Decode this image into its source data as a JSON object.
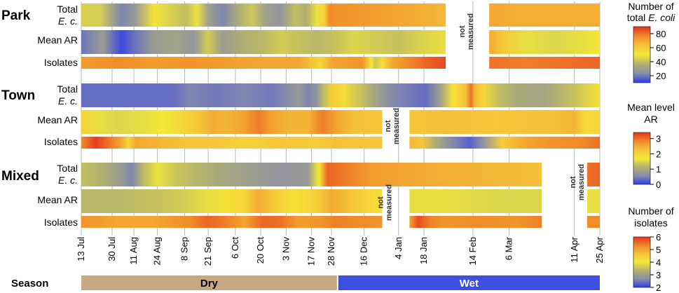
{
  "chart_data": {
    "type": "heatmap",
    "dates": [
      "13 Jul",
      "30 Jul",
      "11 Aug",
      "24 Aug",
      "8 Sep",
      "21 Sep",
      "6 Oct",
      "20 Oct",
      "3 Nov",
      "17 Nov",
      "28 Nov",
      "16 Dec",
      "4 Jan",
      "18 Jan",
      "14 Feb",
      "6 Mar",
      "11 Apr",
      "25 Apr"
    ],
    "date_days": [
      0,
      17,
      29,
      42,
      57,
      70,
      85,
      99,
      113,
      127,
      138,
      156,
      175,
      189,
      216,
      236,
      272,
      286
    ],
    "not_measured_label": [
      "not",
      "measured"
    ],
    "groups": [
      {
        "name": "Park",
        "total_label": [
          "Total",
          "E. c."
        ],
        "mean_ar_label": "Mean AR",
        "isolates_label": "Isolates",
        "total_range": [
          0,
          201
        ],
        "total_range_2": [
          225,
          286
        ],
        "not_measured_day": 216,
        "total_values": [
          [
            0,
            44
          ],
          [
            10,
            44
          ],
          [
            22,
            22
          ],
          [
            30,
            28
          ],
          [
            40,
            52
          ],
          [
            50,
            44
          ],
          [
            58,
            40
          ],
          [
            64,
            48
          ],
          [
            70,
            30
          ],
          [
            78,
            22
          ],
          [
            86,
            34
          ],
          [
            94,
            42
          ],
          [
            102,
            30
          ],
          [
            110,
            26
          ],
          [
            118,
            40
          ],
          [
            124,
            36
          ],
          [
            130,
            48
          ],
          [
            134,
            58
          ],
          [
            137,
            76
          ],
          [
            143,
            74
          ],
          [
            160,
            72
          ],
          [
            175,
            70
          ],
          [
            190,
            68
          ],
          [
            201,
            66
          ],
          [
            225,
            70
          ],
          [
            240,
            68
          ],
          [
            260,
            68
          ],
          [
            286,
            68
          ]
        ],
        "total_values_2": [
          [
            225,
            70
          ],
          [
            240,
            68
          ],
          [
            260,
            68
          ],
          [
            286,
            68
          ]
        ],
        "mean_ar_range": [
          0,
          201
        ],
        "mean_ar_range_2": [
          225,
          286
        ],
        "mean_ar_values": [
          [
            0,
            0.4
          ],
          [
            12,
            0.8
          ],
          [
            22,
            0.1
          ],
          [
            30,
            0.4
          ],
          [
            40,
            0.8
          ],
          [
            52,
            0.9
          ],
          [
            62,
            0.7
          ],
          [
            70,
            1.4
          ],
          [
            78,
            0.8
          ],
          [
            90,
            1.1
          ],
          [
            100,
            1.2
          ],
          [
            110,
            1.4
          ],
          [
            120,
            1.3
          ],
          [
            130,
            1.2
          ],
          [
            140,
            1.3
          ],
          [
            150,
            1.5
          ],
          [
            162,
            1.4
          ],
          [
            175,
            1.3
          ],
          [
            190,
            1.5
          ],
          [
            201,
            1.6
          ]
        ],
        "mean_ar_values_2": [
          [
            225,
            2.5
          ],
          [
            232,
            2.2
          ],
          [
            245,
            1.6
          ],
          [
            262,
            1.5
          ],
          [
            276,
            1.6
          ],
          [
            286,
            1.7
          ]
        ],
        "isolates_range": [
          0,
          201
        ],
        "isolates_range_2": [
          225,
          286
        ],
        "isolates_values": [
          [
            0,
            5.1
          ],
          [
            20,
            5.3
          ],
          [
            40,
            5.1
          ],
          [
            60,
            5.2
          ],
          [
            80,
            5.1
          ],
          [
            100,
            5.0
          ],
          [
            120,
            5.0
          ],
          [
            132,
            4.3
          ],
          [
            138,
            5.0
          ],
          [
            155,
            5.2
          ],
          [
            160,
            4.0
          ],
          [
            162,
            3.6
          ],
          [
            166,
            4.2
          ],
          [
            172,
            5.0
          ],
          [
            180,
            5.3
          ],
          [
            190,
            5.6
          ],
          [
            201,
            5.8
          ]
        ],
        "isolates_values_2": [
          [
            225,
            5.5
          ],
          [
            245,
            5.4
          ],
          [
            265,
            5.5
          ],
          [
            286,
            5.6
          ]
        ]
      },
      {
        "name": "Town",
        "total_label": [
          "Total",
          "E. c."
        ],
        "mean_ar_label": "Mean AR",
        "isolates_label": "Isolates",
        "not_measured_day": 175,
        "total_values": [
          [
            0,
            18
          ],
          [
            50,
            18
          ],
          [
            60,
            22
          ],
          [
            75,
            20
          ],
          [
            90,
            22
          ],
          [
            105,
            20
          ],
          [
            115,
            24
          ],
          [
            120,
            28
          ],
          [
            125,
            22
          ],
          [
            130,
            26
          ],
          [
            134,
            40
          ],
          [
            138,
            60
          ],
          [
            145,
            55
          ],
          [
            155,
            40
          ],
          [
            165,
            28
          ],
          [
            175,
            22
          ],
          [
            190,
            18
          ],
          [
            198,
            30
          ],
          [
            205,
            52
          ],
          [
            212,
            64
          ],
          [
            215,
            80
          ],
          [
            217,
            66
          ],
          [
            222,
            56
          ],
          [
            230,
            40
          ],
          [
            240,
            34
          ],
          [
            255,
            32
          ],
          [
            270,
            40
          ],
          [
            286,
            52
          ]
        ],
        "mean_ar_range": [
          0,
          166
        ],
        "mean_ar_range_2": [
          181,
          286
        ],
        "mean_ar_values": [
          [
            0,
            2.0
          ],
          [
            10,
            1.6
          ],
          [
            20,
            1.5
          ],
          [
            35,
            1.6
          ],
          [
            45,
            1.7
          ],
          [
            57,
            2.0
          ],
          [
            65,
            2.2
          ],
          [
            72,
            2.5
          ],
          [
            80,
            2.4
          ],
          [
            90,
            2.6
          ],
          [
            98,
            2.9
          ],
          [
            105,
            2.6
          ],
          [
            115,
            2.4
          ],
          [
            125,
            2.4
          ],
          [
            133,
            2.9
          ],
          [
            140,
            2.6
          ],
          [
            150,
            2.3
          ],
          [
            166,
            2.2
          ]
        ],
        "mean_ar_values_2": [
          [
            181,
            2.2
          ],
          [
            200,
            2.3
          ],
          [
            230,
            2.2
          ],
          [
            260,
            2.3
          ],
          [
            272,
            2.4
          ],
          [
            278,
            1.9
          ],
          [
            286,
            2.0
          ]
        ],
        "isolates_range": [
          0,
          166
        ],
        "isolates_range_2": [
          181,
          286
        ],
        "isolates_values": [
          [
            0,
            5.3
          ],
          [
            8,
            5.9
          ],
          [
            15,
            5.5
          ],
          [
            22,
            5.0
          ],
          [
            26,
            4.3
          ],
          [
            30,
            5.0
          ],
          [
            45,
            4.8
          ],
          [
            60,
            4.6
          ],
          [
            75,
            4.6
          ],
          [
            90,
            4.4
          ],
          [
            110,
            4.6
          ],
          [
            130,
            4.5
          ],
          [
            140,
            4.7
          ],
          [
            150,
            4.6
          ],
          [
            166,
            4.6
          ]
        ],
        "isolates_values_2": [
          [
            181,
            4.8
          ],
          [
            188,
            4.6
          ],
          [
            196,
            3.2
          ],
          [
            206,
            2.6
          ],
          [
            214,
            2.3
          ],
          [
            222,
            2.8
          ],
          [
            232,
            4.5
          ],
          [
            245,
            5.0
          ],
          [
            260,
            5.2
          ],
          [
            275,
            5.3
          ],
          [
            286,
            5.5
          ]
        ]
      },
      {
        "name": "Mixed",
        "total_label": [
          "Total",
          "E. c."
        ],
        "mean_ar_label": "Mean AR",
        "isolates_label": "Isolates",
        "total_range": [
          0,
          254
        ],
        "total_range_2": [
          279,
          286
        ],
        "not_measured_day": 270,
        "total_values": [
          [
            0,
            40
          ],
          [
            12,
            36
          ],
          [
            22,
            28
          ],
          [
            28,
            22
          ],
          [
            35,
            40
          ],
          [
            42,
            48
          ],
          [
            52,
            42
          ],
          [
            62,
            38
          ],
          [
            75,
            34
          ],
          [
            90,
            30
          ],
          [
            110,
            26
          ],
          [
            125,
            28
          ],
          [
            131,
            50
          ],
          [
            136,
            82
          ],
          [
            141,
            80
          ],
          [
            160,
            72
          ],
          [
            180,
            70
          ],
          [
            200,
            68
          ],
          [
            230,
            66
          ],
          [
            254,
            64
          ]
        ],
        "total_values_2": [
          [
            279,
            80
          ],
          [
            286,
            82
          ]
        ],
        "mean_ar_range": [
          0,
          166
        ],
        "mean_ar_range_2": [
          181,
          254
        ],
        "mean_ar_range_3": [
          279,
          286
        ],
        "mean_ar_values": [
          [
            0,
            1.2
          ],
          [
            20,
            1.2
          ],
          [
            40,
            1.3
          ],
          [
            55,
            1.4
          ],
          [
            70,
            1.6
          ],
          [
            80,
            1.8
          ],
          [
            90,
            2.0
          ],
          [
            98,
            2.5
          ],
          [
            105,
            2.2
          ],
          [
            118,
            1.8
          ],
          [
            130,
            2.1
          ],
          [
            138,
            2.5
          ],
          [
            150,
            2.2
          ],
          [
            166,
            1.8
          ]
        ],
        "mean_ar_values_2": [
          [
            181,
            1.6
          ],
          [
            200,
            1.6
          ],
          [
            230,
            1.5
          ],
          [
            254,
            1.5
          ]
        ],
        "mean_ar_values_3": [
          [
            279,
            1.6
          ],
          [
            286,
            1.6
          ]
        ],
        "isolates_range": [
          0,
          166
        ],
        "isolates_range_2": [
          181,
          254
        ],
        "isolates_range_3": [
          279,
          286
        ],
        "isolates_values": [
          [
            0,
            5.2
          ],
          [
            20,
            5.0
          ],
          [
            40,
            5.0
          ],
          [
            60,
            5.3
          ],
          [
            70,
            5.6
          ],
          [
            80,
            5.4
          ],
          [
            90,
            5.0
          ],
          [
            100,
            5.6
          ],
          [
            110,
            5.5
          ],
          [
            120,
            5.1
          ],
          [
            132,
            5.2
          ],
          [
            140,
            5.4
          ],
          [
            155,
            5.3
          ],
          [
            166,
            5.2
          ]
        ],
        "isolates_values_2": [
          [
            181,
            5.0
          ],
          [
            186,
            5.8
          ],
          [
            192,
            5.4
          ],
          [
            200,
            5.2
          ],
          [
            220,
            5.3
          ],
          [
            240,
            5.2
          ],
          [
            254,
            5.4
          ]
        ],
        "isolates_values_3": [
          [
            279,
            5.3
          ],
          [
            286,
            5.3
          ]
        ]
      }
    ],
    "legends": [
      {
        "title": [
          "Number of",
          "total E. coli"
        ],
        "min": 10,
        "max": 90,
        "ticks": [
          20,
          40,
          60,
          80
        ]
      },
      {
        "title": [
          "Mean level",
          "AR"
        ],
        "min": 0,
        "max": 3.4,
        "ticks": [
          0,
          1,
          2,
          3
        ]
      },
      {
        "title": [
          "Number of",
          "isolates"
        ],
        "min": 2,
        "max": 6,
        "ticks": [
          2,
          3,
          4,
          5,
          6
        ]
      }
    ],
    "season": {
      "label": "Season",
      "bands": [
        {
          "name": "Dry",
          "start_day": 0,
          "end_day": 141,
          "color": "#c8a882"
        },
        {
          "name": "Wet",
          "start_day": 141,
          "end_day": 286,
          "color": "#3c4fe0"
        }
      ]
    },
    "colors": [
      "#2c3ce8",
      "#8b8fa8",
      "#b0b070",
      "#f5e838",
      "#f5c23a",
      "#f08a28",
      "#e63020"
    ]
  }
}
